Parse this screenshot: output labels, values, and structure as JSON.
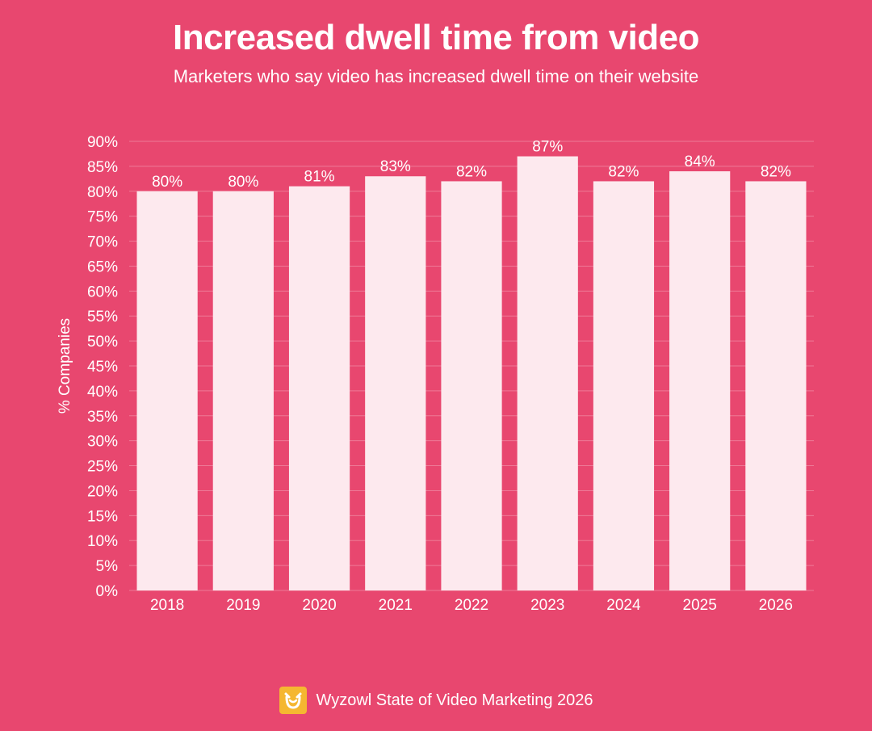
{
  "header": {
    "title": "Increased dwell time from video",
    "subtitle": "Marketers who say video has increased dwell time on their website"
  },
  "footer": {
    "source": "Wyzowl State of Video Marketing 2026",
    "logo_icon": "wyzowl-owl-icon"
  },
  "colors": {
    "background": "#e8476f",
    "bar": "#fde9ee",
    "logo": "#f5b731"
  },
  "chart_data": {
    "type": "bar",
    "title": "Increased dwell time from video",
    "subtitle": "Marketers who say video has increased dwell time on their website",
    "xlabel": "",
    "ylabel": "% Companies",
    "categories": [
      "2018",
      "2019",
      "2020",
      "2021",
      "2022",
      "2023",
      "2024",
      "2025",
      "2026"
    ],
    "values": [
      80,
      80,
      81,
      83,
      82,
      87,
      82,
      84,
      82
    ],
    "value_labels": [
      "80%",
      "80%",
      "81%",
      "83%",
      "82%",
      "87%",
      "82%",
      "84%",
      "82%"
    ],
    "ylim": [
      0,
      90
    ],
    "yticks": [
      0,
      5,
      10,
      15,
      20,
      25,
      30,
      35,
      40,
      45,
      50,
      55,
      60,
      65,
      70,
      75,
      80,
      85,
      90
    ],
    "ytick_labels": [
      "0%",
      "5%",
      "10%",
      "15%",
      "20%",
      "25%",
      "30%",
      "35%",
      "40%",
      "45%",
      "50%",
      "55%",
      "60%",
      "65%",
      "70%",
      "75%",
      "80%",
      "85%",
      "90%"
    ],
    "grid": true,
    "legend": "none"
  }
}
